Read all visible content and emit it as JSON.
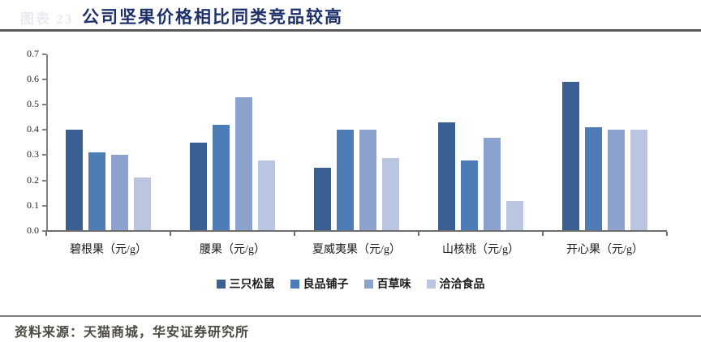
{
  "header": {
    "figure_tag": "图表 23",
    "title": "公司坚果价格相比同类竞品较高"
  },
  "chart_data": {
    "type": "bar",
    "title": "公司坚果价格相比同类竞品较高",
    "categories": [
      "碧根果（元/g）",
      "腰果（元/g）",
      "夏威夷果（元/g）",
      "山核桃（元/g）",
      "开心果（元/g）"
    ],
    "series": [
      {
        "name": "三只松鼠",
        "color": "#3A5F92",
        "values": [
          0.4,
          0.35,
          0.25,
          0.43,
          0.59
        ]
      },
      {
        "name": "良品铺子",
        "color": "#4E7CB7",
        "values": [
          0.31,
          0.42,
          0.4,
          0.28,
          0.41
        ]
      },
      {
        "name": "百草味",
        "color": "#8CA2CE",
        "values": [
          0.3,
          0.53,
          0.4,
          0.37,
          0.4
        ]
      },
      {
        "name": "洽洽食品",
        "color": "#BAC6E1",
        "values": [
          0.21,
          0.28,
          0.29,
          0.12,
          0.4
        ]
      }
    ],
    "ylim": [
      0,
      0.7
    ],
    "ytick_labels": [
      "0.0",
      "0.1",
      "0.2",
      "0.3",
      "0.4",
      "0.5",
      "0.6",
      "0.7"
    ],
    "grid": false,
    "legend_position": "bottom",
    "xlabel": "",
    "ylabel": ""
  },
  "footer": {
    "source": "资料来源：天猫商城，华安证券研究所"
  },
  "colors": {
    "title": "#1D3069",
    "axis": "#6e6e6e",
    "rule": "#595959",
    "source_text": "#4c4a41"
  }
}
